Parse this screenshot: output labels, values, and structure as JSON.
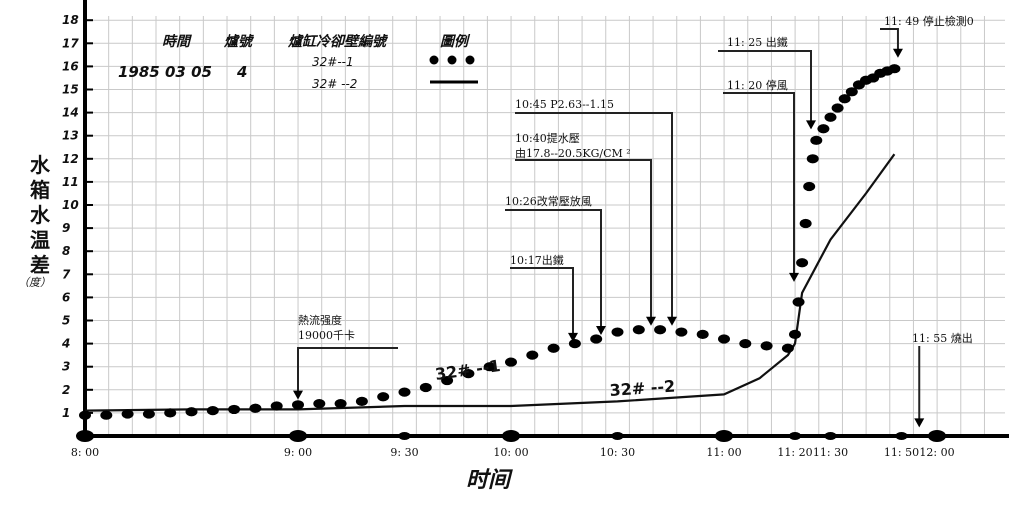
{
  "chart_data": {
    "type": "line",
    "xlabel": "时间",
    "ylabel": "水箱水温差",
    "ylabel_unit": "（度）",
    "ylim": [
      0,
      18
    ],
    "yticks": [
      "1",
      "2",
      "3",
      "4",
      "5",
      "6",
      "7",
      "8",
      "9",
      "10",
      "11",
      "12",
      "13",
      "14",
      "15",
      "16",
      "17",
      "18"
    ],
    "xticks": [
      {
        "t": 480,
        "label": "8: 00"
      },
      {
        "t": 540,
        "label": "9: 00"
      },
      {
        "t": 570,
        "label": "9: 30"
      },
      {
        "t": 600,
        "label": "10: 00"
      },
      {
        "t": 630,
        "label": "10: 30"
      },
      {
        "t": 660,
        "label": "11: 00"
      },
      {
        "t": 680,
        "label": "11: 20"
      },
      {
        "t": 690,
        "label": "11: 30"
      },
      {
        "t": 710,
        "label": "11: 50"
      },
      {
        "t": 720,
        "label": "12: 00"
      }
    ],
    "header": {
      "col_time": "時間",
      "col_furnace": "爐號",
      "col_wall": "爐缸冷卻壁編號",
      "col_legend": "圖例",
      "date": "1985 03 05",
      "furnace_no": "4",
      "series1_code": "32#--1",
      "series2_code": "32# --2"
    },
    "series": [
      {
        "name": "32# --1",
        "style": "dots",
        "x": [
          480,
          486,
          492,
          498,
          504,
          510,
          516,
          522,
          528,
          534,
          540,
          546,
          552,
          558,
          564,
          570,
          576,
          582,
          588,
          594,
          600,
          606,
          612,
          618,
          624,
          630,
          636,
          642,
          648,
          654,
          660,
          666,
          672,
          678,
          680,
          681,
          682,
          683,
          684,
          685,
          686,
          688,
          690,
          692,
          694,
          696,
          698,
          700,
          702,
          704,
          706,
          708
        ],
        "y": [
          0.9,
          0.9,
          0.95,
          0.95,
          1.0,
          1.05,
          1.1,
          1.15,
          1.2,
          1.3,
          1.35,
          1.4,
          1.4,
          1.5,
          1.7,
          1.9,
          2.1,
          2.4,
          2.7,
          3.0,
          3.2,
          3.5,
          3.8,
          4.0,
          4.2,
          4.5,
          4.6,
          4.6,
          4.5,
          4.4,
          4.2,
          4.0,
          3.9,
          3.8,
          4.4,
          5.8,
          7.5,
          9.2,
          10.8,
          12.0,
          12.8,
          13.3,
          13.8,
          14.2,
          14.6,
          14.9,
          15.2,
          15.4,
          15.5,
          15.7,
          15.8,
          15.9
        ]
      },
      {
        "name": "32# --2",
        "style": "line",
        "x": [
          480,
          510,
          540,
          570,
          600,
          630,
          660,
          670,
          678,
          680,
          682,
          690,
          700,
          708
        ],
        "y": [
          1.1,
          1.15,
          1.15,
          1.3,
          1.3,
          1.5,
          1.8,
          2.5,
          3.5,
          4.0,
          6.2,
          8.5,
          10.5,
          12.2
        ]
      }
    ],
    "series_labels": {
      "s1": "32# --1",
      "s2": "32# --2"
    },
    "annotations": [
      {
        "text": "熱流强度",
        "text2": "19000千卡",
        "x": 540,
        "y": 1.4
      },
      {
        "text": "10:17出鐵",
        "x": 617,
        "y": 3.9
      },
      {
        "text": "10:26改常壓放風",
        "x": 626,
        "y": 4.2
      },
      {
        "text": "10:40提水壓",
        "text2": "由17.8--20.5KG/CM ²",
        "x": 640,
        "y": 4.6
      },
      {
        "text": "10:45 P2.63--1.15",
        "x": 645,
        "y": 4.6
      },
      {
        "text": "11: 20  停風",
        "x": 680,
        "y": 6.5
      },
      {
        "text": "11: 25  出鐵",
        "x": 685,
        "y": 13.1
      },
      {
        "text": "11: 49  停止檢測0",
        "x": 709,
        "y": 16.2
      },
      {
        "text": "11: 55  燒出",
        "x": 715,
        "y": 0.2
      }
    ]
  }
}
